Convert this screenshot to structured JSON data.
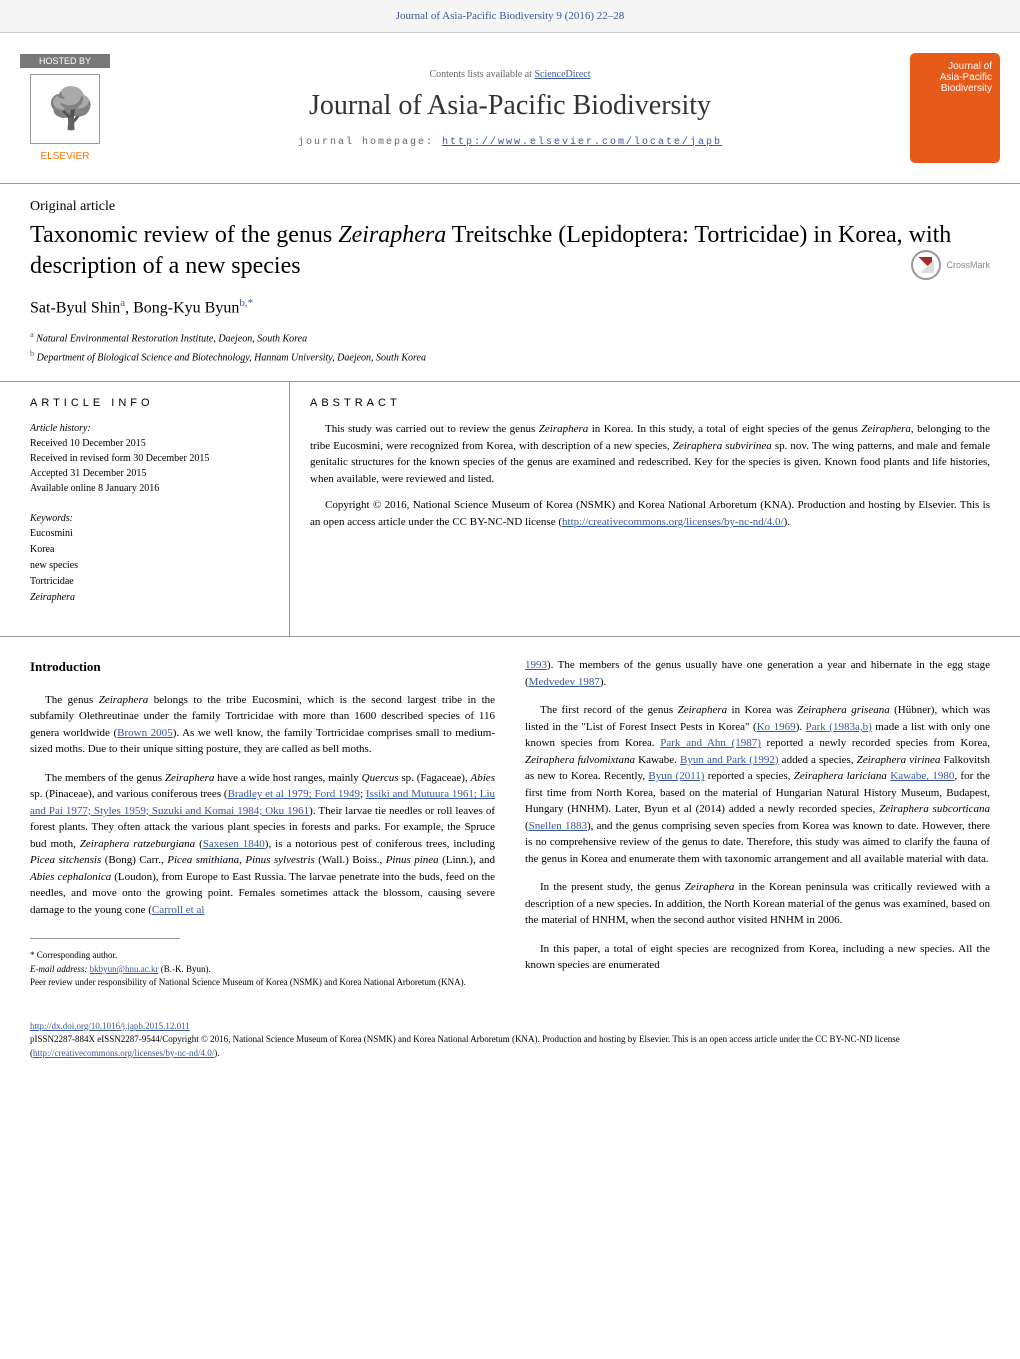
{
  "header": {
    "journal_ref": "Journal of Asia-Pacific Biodiversity 9 (2016) 22–28",
    "hosted_by": "HOSTED BY",
    "elsevier": "ELSEVIER",
    "contents_text": "Contents lists available at ",
    "contents_link": "ScienceDirect",
    "journal_title": "Journal of Asia-Pacific Biodiversity",
    "homepage_label": "journal homepage: ",
    "homepage_url": "http://www.elsevier.com/locate/japb",
    "cover_line1": "Journal of",
    "cover_line2": "Asia-Pacific",
    "cover_line3": "Biodiversity",
    "crossmark": "CrossMark"
  },
  "article": {
    "type": "Original article",
    "title_pre": "Taxonomic review of the genus ",
    "title_genus": "Zeiraphera",
    "title_post": " Treitschke (Lepidoptera: Tortricidae) in Korea, with description of a new species",
    "author1_name": "Sat-Byul Shin",
    "author1_aff": "a",
    "author2_name": "Bong-Kyu Byun",
    "author2_aff": "b,",
    "author2_corr": "*",
    "aff_a_sup": "a",
    "aff_a": "Natural Environmental Restoration Institute, Daejeon, South Korea",
    "aff_b_sup": "b",
    "aff_b": "Department of Biological Science and Biotechnology, Hannam University, Daejeon, South Korea"
  },
  "info": {
    "article_info_label": "ARTICLE INFO",
    "history_label": "Article history:",
    "received": "Received 10 December 2015",
    "revised": "Received in revised form 30 December 2015",
    "accepted": "Accepted 31 December 2015",
    "online": "Available online 8 January 2016",
    "keywords_label": "Keywords:",
    "kw1": "Eucosmini",
    "kw2": "Korea",
    "kw3": "new species",
    "kw4": "Tortricidae",
    "kw5_ital": "Zeiraphera"
  },
  "abstract": {
    "label": "ABSTRACT",
    "p1_a": "This study was carried out to review the genus ",
    "p1_b": "Zeiraphera",
    "p1_c": " in Korea. In this study, a total of eight species of the genus ",
    "p1_d": "Zeiraphera",
    "p1_e": ", belonging to the tribe Eucosmini, were recognized from Korea, with description of a new species, ",
    "p1_f": "Zeiraphera subvirinea",
    "p1_g": " sp. nov. The wing patterns, and male and female genitalic structures for the known species of the genus are examined and redescribed. Key for the species is given. Known food plants and life histories, when available, were reviewed and listed.",
    "p2_a": "Copyright © 2016, National Science Museum of Korea (NSMK) and Korea National Arboretum (KNA). Production and hosting by Elsevier. This is an open access article under the CC BY-NC-ND license (",
    "p2_link": "http://creativecommons.org/licenses/by-nc-nd/4.0/",
    "p2_b": ")."
  },
  "intro": {
    "heading": "Introduction",
    "left_p1_a": "The genus ",
    "left_p1_b": "Zeiraphera",
    "left_p1_c": " belongs to the tribe Eucosmini, which is the second largest tribe in the subfamily Olethreutinae under the family Tortricidae with more than 1600 described species of 116 genera worldwide (",
    "left_p1_link1": "Brown 2005",
    "left_p1_d": "). As we well know, the family Tortricidae comprises small to medium-sized moths. Due to their unique sitting posture, they are called as bell moths.",
    "left_p2_a": "The members of the genus ",
    "left_p2_b": "Zeiraphera",
    "left_p2_c": " have a wide host ranges, mainly ",
    "left_p2_d": "Quercus",
    "left_p2_e": " sp. (Fagaceae), ",
    "left_p2_f": "Abies",
    "left_p2_g": " sp. (Pinaceae), and various coniferous trees (",
    "left_p2_link1": "Bradley et al 1979; Ford 1949",
    "left_p2_h": "; ",
    "left_p2_link2": "Issiki and Mutuura 1961; Liu and Pai 1977; Styles 1959; Suzuki and Komai 1984; Oku 1961",
    "left_p2_i": "). Their larvae tie needles or roll leaves of forest plants. They often attack the various plant species in forests and parks. For example, the Spruce bud moth, ",
    "left_p2_j": "Zeiraphera ratzeburgiana",
    "left_p2_k": " (",
    "left_p2_link3": "Saxesen 1840",
    "left_p2_l": "), is a notorious pest of coniferous trees, including ",
    "left_p2_m": "Picea sitchensis",
    "left_p2_n": " (Bong) Carr., ",
    "left_p2_o": "Picea smithiana",
    "left_p2_p": ", ",
    "left_p2_q": "Pinus sylvestris",
    "left_p2_r": " (Wall.) Boiss., ",
    "left_p2_s": "Pinus pinea",
    "left_p2_t": " (Linn.), and ",
    "left_p2_u": "Abies cephalonica",
    "left_p2_v": " (Loudon), from Europe to East Russia. The larvae penetrate into the buds, feed on the needles, and move onto the growing point. Females sometimes attack the blossom, causing severe damage to the young cone (",
    "left_p2_link4": "Carroll et al",
    "right_p1_link1": "1993",
    "right_p1_a": "). The members of the genus usually have one generation a year and hibernate in the egg stage (",
    "right_p1_link2": "Medvedev 1987",
    "right_p1_b": ").",
    "right_p2_a": "The first record of the genus ",
    "right_p2_b": "Zeiraphera",
    "right_p2_c": " in Korea was ",
    "right_p2_d": "Zeiraphera griseana",
    "right_p2_e": " (Hübner), which was listed in the \"List of Forest Insect Pests in Korea\" (",
    "right_p2_link1": "Ko 1969",
    "right_p2_f": "). ",
    "right_p2_link2": "Park (1983a,b)",
    "right_p2_g": " made a list with only one known species from Korea. ",
    "right_p2_link3": "Park and Ahn (1987)",
    "right_p2_h": " reported a newly recorded species from Korea, ",
    "right_p2_i": "Zeiraphera fulvomixtana",
    "right_p2_j": " Kawabe. ",
    "right_p2_link4": "Byun and Park (1992)",
    "right_p2_k": " added a species, ",
    "right_p2_l": "Zeiraphera virinea",
    "right_p2_m": " Falkovitsh as new to Korea. Recently, ",
    "right_p2_link5": "Byun (2011)",
    "right_p2_n": " reported a species, ",
    "right_p2_o": "Zeiraphera lariciana",
    "right_p2_p": " ",
    "right_p2_link6": "Kawabe, 1980",
    "right_p2_q": ", for the first time from North Korea, based on the material of Hungarian Natural History Museum, Budapest, Hungary (HNHM). Later, Byun et al (2014) added a newly recorded species, ",
    "right_p2_r": "Zeiraphera subcorticana",
    "right_p2_s": " (",
    "right_p2_link7": "Snellen 1883",
    "right_p2_t": "), and the genus comprising seven species from Korea was known to date. However, there is no comprehensive review of the genus to date. Therefore, this study was aimed to clarify the fauna of the genus in Korea and enumerate them with taxonomic arrangement and all available material with data.",
    "right_p3_a": "In the present study, the genus ",
    "right_p3_b": "Zeiraphera",
    "right_p3_c": " in the Korean peninsula was critically reviewed with a description of a new species. In addition, the North Korean material of the genus was examined, based on the material of HNHM, when the second author visited HNHM in 2006.",
    "right_p4": "In this paper, a total of eight species are recognized from Korea, including a new species. All the known species are enumerated"
  },
  "footnotes": {
    "corr": "* Corresponding author.",
    "email_label": "E-mail address:",
    "email": "bkbyun@hnu.ac.kr",
    "email_name": " (B.-K. Byun).",
    "peer": "Peer review under responsibility of National Science Museum of Korea (NSMK) and Korea National Arboretum (KNA)."
  },
  "footer": {
    "doi": "http://dx.doi.org/10.1016/j.japb.2015.12.011",
    "copyright_a": "pISSN2287-884X eISSN2287-9544/Copyright © 2016, National Science Museum of Korea (NSMK) and Korea National Arboretum (KNA). Production and hosting by Elsevier. This is an open access article under the CC BY-NC-ND license (",
    "copyright_link": "http://creativecommons.org/licenses/by-nc-nd/4.0/",
    "copyright_b": ")."
  }
}
